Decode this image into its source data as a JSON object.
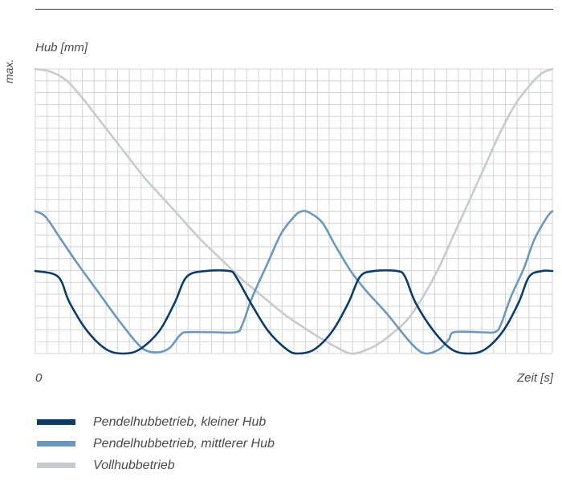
{
  "chart_data": {
    "type": "line",
    "ylabel": "Hub [mm]",
    "ymax_label": "max.",
    "xlabel": "Zeit [s]",
    "x_origin_label": "0",
    "x_range": [
      0,
      100
    ],
    "y_range": [
      0,
      100
    ],
    "grid": true,
    "legend_position": "bottom-left",
    "series": [
      {
        "name": "Pendelhubbetrieb, kleiner Hub",
        "color": "#0b3d6b",
        "points": [
          [
            0,
            29
          ],
          [
            4.4,
            27
          ],
          [
            6.6,
            18
          ],
          [
            10,
            8
          ],
          [
            13.7,
            1.5
          ],
          [
            17,
            0
          ],
          [
            20.2,
            1.5
          ],
          [
            24,
            8
          ],
          [
            27,
            18
          ],
          [
            29.3,
            27
          ],
          [
            33,
            29
          ],
          [
            37.5,
            29
          ],
          [
            38.8,
            27
          ],
          [
            41.6,
            18
          ],
          [
            45,
            8
          ],
          [
            48.6,
            1.5
          ],
          [
            50.8,
            0
          ],
          [
            54,
            1.5
          ],
          [
            57.5,
            8
          ],
          [
            60.6,
            18
          ],
          [
            62.8,
            27
          ],
          [
            65.5,
            29
          ],
          [
            70,
            29
          ],
          [
            71.5,
            27
          ],
          [
            73.5,
            18
          ],
          [
            77,
            8
          ],
          [
            80.5,
            1.5
          ],
          [
            83.8,
            0
          ],
          [
            87,
            1.5
          ],
          [
            90.5,
            8
          ],
          [
            93.5,
            18
          ],
          [
            95.5,
            27
          ],
          [
            98,
            29
          ],
          [
            100,
            29
          ]
        ]
      },
      {
        "name": "Pendelhubbetrieb, mittlerer Hub",
        "color": "#6b98be",
        "points": [
          [
            0,
            50
          ],
          [
            2,
            48
          ],
          [
            5,
            40
          ],
          [
            8,
            32
          ],
          [
            12,
            22
          ],
          [
            16,
            12
          ],
          [
            19.5,
            4
          ],
          [
            21.5,
            1
          ],
          [
            24,
            0.5
          ],
          [
            26,
            2
          ],
          [
            28,
            6.5
          ],
          [
            29.3,
            7.5
          ],
          [
            34,
            7.5
          ],
          [
            38.8,
            7.5
          ],
          [
            40,
            10
          ],
          [
            42,
            20
          ],
          [
            45,
            32
          ],
          [
            47.5,
            42
          ],
          [
            50,
            48
          ],
          [
            51.5,
            50
          ],
          [
            53,
            49.5
          ],
          [
            55.5,
            46
          ],
          [
            58,
            38
          ],
          [
            61,
            29
          ],
          [
            64,
            22
          ],
          [
            68,
            14
          ],
          [
            72,
            5
          ],
          [
            74.2,
            1
          ],
          [
            75.6,
            0
          ],
          [
            77,
            0.5
          ],
          [
            78.5,
            2
          ],
          [
            80,
            5
          ],
          [
            81,
            7.5
          ],
          [
            86,
            7.5
          ],
          [
            88.8,
            7.5
          ],
          [
            90,
            10
          ],
          [
            92,
            20
          ],
          [
            94.5,
            30
          ],
          [
            96.5,
            40
          ],
          [
            99,
            48
          ],
          [
            100,
            50
          ]
        ]
      },
      {
        "name": "Vollhubbetrieb",
        "color": "#c7cace",
        "points": [
          [
            0,
            100
          ],
          [
            3,
            99
          ],
          [
            6,
            96
          ],
          [
            9,
            90
          ],
          [
            12,
            83
          ],
          [
            15,
            76
          ],
          [
            18,
            69
          ],
          [
            21,
            62
          ],
          [
            24,
            56
          ],
          [
            28,
            48
          ],
          [
            32,
            40
          ],
          [
            36,
            33
          ],
          [
            40,
            26
          ],
          [
            44,
            20
          ],
          [
            48,
            14
          ],
          [
            52,
            9
          ],
          [
            56,
            4.5
          ],
          [
            59,
            1.5
          ],
          [
            61,
            0
          ],
          [
            63,
            0.6
          ],
          [
            66,
            3
          ],
          [
            69,
            7
          ],
          [
            72,
            12
          ],
          [
            75,
            20
          ],
          [
            78,
            30
          ],
          [
            81,
            42
          ],
          [
            84,
            54
          ],
          [
            87,
            66
          ],
          [
            90,
            78
          ],
          [
            93,
            88
          ],
          [
            96,
            95
          ],
          [
            98,
            98.5
          ],
          [
            100,
            100
          ]
        ]
      }
    ]
  }
}
